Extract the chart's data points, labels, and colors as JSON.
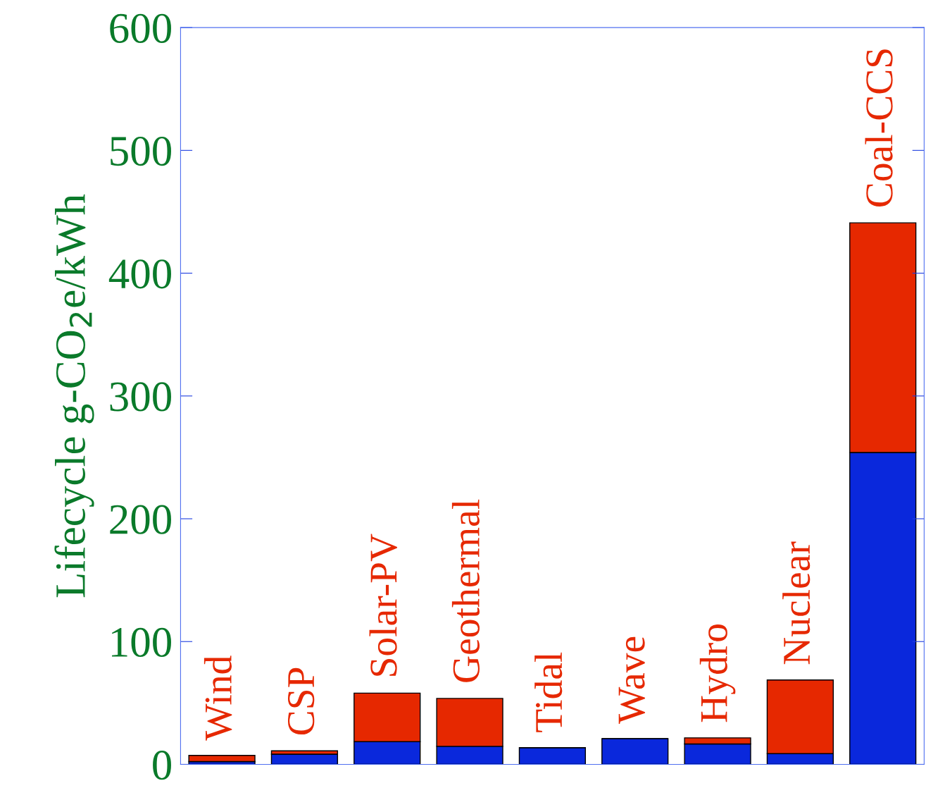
{
  "chart_data": {
    "type": "bar",
    "stacked": true,
    "ylabel": "Lifecycle g-CO$_{2}$e/kWh",
    "categories": [
      "Wind",
      "CSP",
      "Solar-PV",
      "Geothermal",
      "Tidal",
      "Wave",
      "Hydro",
      "Nuclear",
      "Coal-CCS"
    ],
    "series": [
      {
        "color": "#0a28dc",
        "values": [
          2.3,
          8.3,
          18.5,
          14.7,
          13.6,
          21,
          16.6,
          8.7,
          254
        ]
      },
      {
        "color": "#e62800",
        "values": [
          5,
          2.7,
          39.5,
          39,
          null,
          null,
          5,
          60,
          187
        ]
      }
    ],
    "ylim": [
      0,
      600
    ],
    "yticks": [
      0,
      100,
      200,
      300,
      400,
      500,
      600
    ],
    "grid": false,
    "tick_labels": "y"
  }
}
